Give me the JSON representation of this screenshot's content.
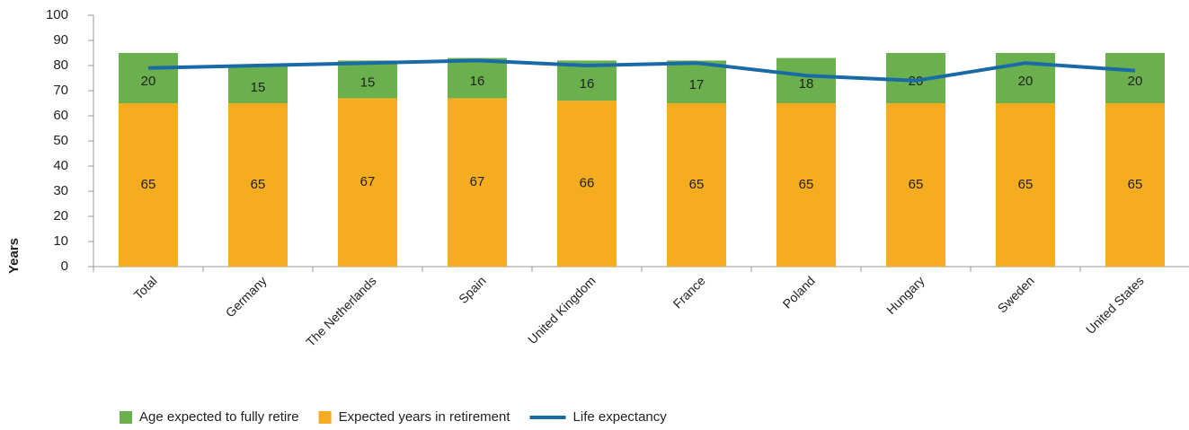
{
  "chart_data": {
    "type": "bar",
    "y_label": "Years",
    "categories": [
      "Total",
      "Germany",
      "The Netherlands",
      "Spain",
      "United Kingdom",
      "France",
      "Poland",
      "Hungary",
      "Sweden",
      "United States"
    ],
    "series": [
      {
        "name": "Age expected to fully retire",
        "type": "bar",
        "color": "#6ab04c",
        "values": [
          20,
          15,
          15,
          16,
          16,
          17,
          18,
          20,
          20,
          20
        ]
      },
      {
        "name": "Expected years in retirement",
        "type": "bar",
        "color": "#f5ad1f",
        "values": [
          65,
          65,
          67,
          67,
          66,
          65,
          65,
          65,
          65,
          65
        ]
      },
      {
        "name": "Life expectancy",
        "type": "line",
        "color": "#1a6aa8",
        "values": [
          79,
          80,
          81,
          82,
          80,
          81,
          76,
          74,
          81,
          78
        ]
      }
    ],
    "ylim": [
      0,
      100
    ],
    "yticks": [
      0,
      10,
      20,
      30,
      40,
      50,
      60,
      70,
      80,
      90,
      100
    ]
  }
}
